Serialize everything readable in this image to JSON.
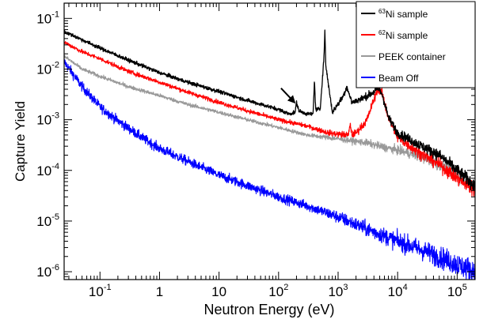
{
  "chart_data": {
    "type": "line",
    "xlabel": "Neutron Energy (eV)",
    "ylabel": "Capture Yield",
    "xscale": "log",
    "yscale": "log",
    "xlim": [
      0.025,
      200000
    ],
    "ylim": [
      7e-07,
      0.2
    ],
    "grid": false,
    "legend_position": "top-right",
    "x_ticks": [
      {
        "value": 0.1,
        "label_base": "10",
        "label_exp": "-1"
      },
      {
        "value": 1,
        "label_base": "1",
        "label_exp": ""
      },
      {
        "value": 10,
        "label_base": "10",
        "label_exp": ""
      },
      {
        "value": 100,
        "label_base": "10",
        "label_exp": "2"
      },
      {
        "value": 1000,
        "label_base": "10",
        "label_exp": "3"
      },
      {
        "value": 10000,
        "label_base": "10",
        "label_exp": "4"
      },
      {
        "value": 100000,
        "label_base": "10",
        "label_exp": "5"
      }
    ],
    "y_ticks": [
      {
        "value": 1e-06,
        "label_base": "10",
        "label_exp": "-6"
      },
      {
        "value": 1e-05,
        "label_base": "10",
        "label_exp": "-5"
      },
      {
        "value": 0.0001,
        "label_base": "10",
        "label_exp": "-4"
      },
      {
        "value": 0.001,
        "label_base": "10",
        "label_exp": "-3"
      },
      {
        "value": 0.01,
        "label_base": "10",
        "label_exp": "-2"
      },
      {
        "value": 0.1,
        "label_base": "10",
        "label_exp": "-1"
      }
    ],
    "series": [
      {
        "name": "Ni sample",
        "name_sup": "63",
        "color": "#000000",
        "noise": 0.035,
        "x": [
          0.025,
          0.05,
          0.1,
          0.3,
          1,
          3,
          10,
          30,
          100,
          150,
          190,
          200,
          220,
          300,
          380,
          400,
          420,
          500,
          580,
          600,
          620,
          800,
          1200,
          1400,
          1700,
          2500,
          4000,
          4700,
          5500,
          7000,
          10000,
          20000,
          50000,
          100000,
          200000
        ],
        "y": [
          0.055,
          0.038,
          0.026,
          0.015,
          0.0085,
          0.0055,
          0.0036,
          0.0024,
          0.0016,
          0.0013,
          0.0014,
          0.0022,
          0.0015,
          0.0013,
          0.0013,
          0.006,
          0.0016,
          0.0016,
          0.018,
          0.06,
          0.012,
          0.0014,
          0.0028,
          0.0045,
          0.0022,
          0.0026,
          0.0035,
          0.0042,
          0.0032,
          0.0011,
          0.00055,
          0.00035,
          0.0002,
          0.0001,
          5e-05
        ]
      },
      {
        "name": "Ni sample",
        "name_sup": "62",
        "color": "#ff0000",
        "noise": 0.04,
        "x": [
          0.025,
          0.05,
          0.1,
          0.3,
          1,
          3,
          10,
          30,
          100,
          300,
          500,
          600,
          700,
          1000,
          1500,
          1600,
          1700,
          2000,
          3000,
          4000,
          4700,
          5500,
          7000,
          10000,
          20000,
          50000,
          100000,
          200000
        ],
        "y": [
          0.034,
          0.022,
          0.016,
          0.009,
          0.0055,
          0.0035,
          0.0022,
          0.0015,
          0.001,
          0.00075,
          0.00062,
          0.00058,
          0.00055,
          0.00052,
          0.0005,
          0.00085,
          0.0005,
          0.00055,
          0.00095,
          0.0025,
          0.0042,
          0.0033,
          0.0011,
          0.00045,
          0.00025,
          0.00013,
          7e-05,
          4e-05
        ]
      },
      {
        "name": "PEEK container",
        "name_sup": "",
        "color": "#999999",
        "noise": 0.035,
        "x": [
          0.025,
          0.05,
          0.1,
          0.3,
          1,
          3,
          10,
          30,
          100,
          300,
          1000,
          3000,
          5000,
          10000,
          20000,
          50000,
          100000,
          200000
        ],
        "y": [
          0.018,
          0.01,
          0.0072,
          0.0045,
          0.003,
          0.002,
          0.0014,
          0.001,
          0.0007,
          0.0005,
          0.00042,
          0.00035,
          0.0003,
          0.00025,
          0.0002,
          0.00013,
          8e-05,
          5e-05
        ]
      },
      {
        "name": "Beam Off",
        "name_sup": "",
        "color": "#0000ff",
        "noise": 0.09,
        "x": [
          0.025,
          0.05,
          0.1,
          0.2,
          0.5,
          1,
          3,
          10,
          30,
          100,
          300,
          1000,
          3000,
          10000,
          30000,
          100000,
          200000
        ],
        "y": [
          0.014,
          0.0045,
          0.0018,
          0.00095,
          0.00045,
          0.00027,
          0.00015,
          8e-05,
          5e-05,
          3e-05,
          2e-05,
          1.2e-05,
          7e-06,
          4e-06,
          2.5e-06,
          1.4e-06,
          1e-06
        ]
      }
    ],
    "annotation": {
      "type": "arrow",
      "from": [
        110,
        0.0042
      ],
      "to": [
        185,
        0.0022
      ]
    }
  }
}
